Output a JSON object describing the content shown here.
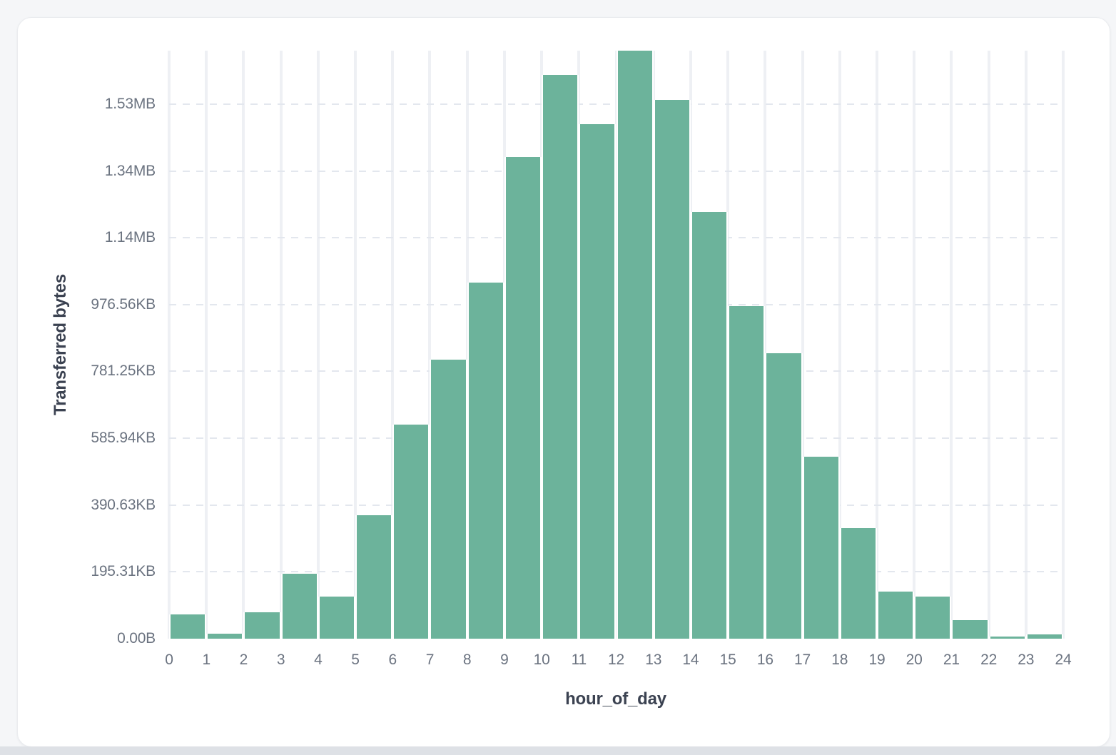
{
  "page": {
    "background_color": "#f5f6f8",
    "bottom_strip_color": "#dee1e6"
  },
  "card": {
    "background_color": "#ffffff",
    "border_color": "#eaecef"
  },
  "chart_data": {
    "type": "bar",
    "subtype": "histogram",
    "title": "",
    "xlabel": "hour_of_day",
    "ylabel": "Transferred bytes",
    "bar_color": "#6cb39b",
    "tick_label_color": "#6b7380",
    "axis_title_color": "#3b4251",
    "grid": {
      "vertical_lines": true,
      "vertical_color": "#eef0f4",
      "horizontal_dashed": true,
      "horizontal_color": "#e3e7ee"
    },
    "legend": "none",
    "xlim": [
      0,
      24
    ],
    "ylim_bytes": [
      0,
      1760000
    ],
    "bin_width_hours": 1,
    "x_bins_start_hour": [
      0,
      1,
      2,
      3,
      4,
      5,
      6,
      7,
      8,
      9,
      10,
      11,
      12,
      13,
      14,
      15,
      16,
      17,
      18,
      19,
      20,
      21,
      22,
      23
    ],
    "values_bytes": [
      72000,
      15500,
      78000,
      195000,
      125000,
      369000,
      640000,
      835000,
      1066000,
      1441000,
      1687000,
      1541000,
      1760000,
      1612000,
      1277000,
      996000,
      855000,
      545000,
      331000,
      140000,
      126000,
      56000,
      6000,
      12000
    ],
    "x_tick_labels": [
      "0",
      "1",
      "2",
      "3",
      "4",
      "5",
      "6",
      "7",
      "8",
      "9",
      "10",
      "11",
      "12",
      "13",
      "14",
      "15",
      "16",
      "17",
      "18",
      "19",
      "20",
      "21",
      "22",
      "23",
      "24"
    ],
    "y_ticks": [
      {
        "label": "0.00B",
        "bytes": 0
      },
      {
        "label": "195.31KB",
        "bytes": 200000
      },
      {
        "label": "390.63KB",
        "bytes": 400000
      },
      {
        "label": "585.94KB",
        "bytes": 600000
      },
      {
        "label": "781.25KB",
        "bytes": 800000
      },
      {
        "label": "976.56KB",
        "bytes": 1000000
      },
      {
        "label": "1.14MB",
        "bytes": 1200000
      },
      {
        "label": "1.34MB",
        "bytes": 1400000
      },
      {
        "label": "1.53MB",
        "bytes": 1600000
      }
    ]
  }
}
